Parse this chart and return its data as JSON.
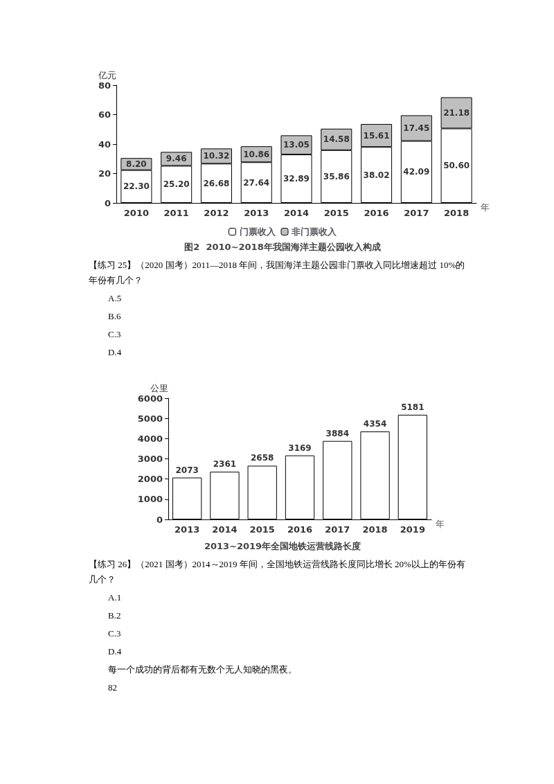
{
  "chart_data": [
    {
      "type": "bar",
      "title": "图2  2010~2018年我国海洋主题公园收入构成",
      "ylabel": "亿元",
      "xlabel": "年",
      "categories": [
        "2010",
        "2011",
        "2012",
        "2013",
        "2014",
        "2015",
        "2016",
        "2017",
        "2018"
      ],
      "stacked": true,
      "series": [
        {
          "name": "门票收入",
          "color": "#ffffff",
          "values": [
            22.3,
            25.2,
            26.68,
            27.64,
            32.89,
            35.86,
            38.02,
            42.09,
            50.6
          ],
          "value_labels": [
            "22.30",
            "25.20",
            "26.68",
            "27.64",
            "32.89",
            "35.86",
            "38.02",
            "42.09",
            "50.60"
          ]
        },
        {
          "name": "非门票收入",
          "color": "#bfbfbf",
          "values": [
            8.2,
            9.46,
            10.32,
            10.86,
            13.05,
            14.58,
            15.61,
            17.45,
            21.18
          ],
          "value_labels": [
            "8.20",
            "9.46",
            "10.32",
            "10.86",
            "13.05",
            "14.58",
            "15.61",
            "17.45",
            "21.18"
          ]
        }
      ],
      "ylim": [
        0,
        80
      ],
      "yticks": [
        0,
        20,
        40,
        60,
        80
      ],
      "grid": false,
      "legend": "bottom",
      "annotations": [
        "【练习 25】（2020 国考）2011—2018 年间，我国海洋主题公园非门票收入同比增速超过 10%的年份有几个？",
        "A.5",
        "B.6",
        "C.3",
        "D.4"
      ]
    },
    {
      "type": "bar",
      "title": "2013~2019年全国地铁运营线路长度",
      "ylabel": "公里",
      "xlabel": "年",
      "categories": [
        "2013",
        "2014",
        "2015",
        "2016",
        "2017",
        "2018",
        "2019"
      ],
      "values": [
        2073,
        2361,
        2658,
        3169,
        3884,
        4354,
        5181
      ],
      "color": "#ffffff",
      "ylim": [
        0,
        6000
      ],
      "yticks": [
        0,
        1000,
        2000,
        3000,
        4000,
        5000,
        6000
      ],
      "grid": false,
      "data_labels": true,
      "annotations": [
        "【练习 26】（2021 国考）2014～2019 年间，全国地铁运营线路长度同比增长 20%以上的年份有几个？",
        "A.1",
        "B.2",
        "C.3",
        "D.4",
        "每一个成功的背后都有无数个无人知晓的黑夜。",
        "82"
      ]
    }
  ]
}
